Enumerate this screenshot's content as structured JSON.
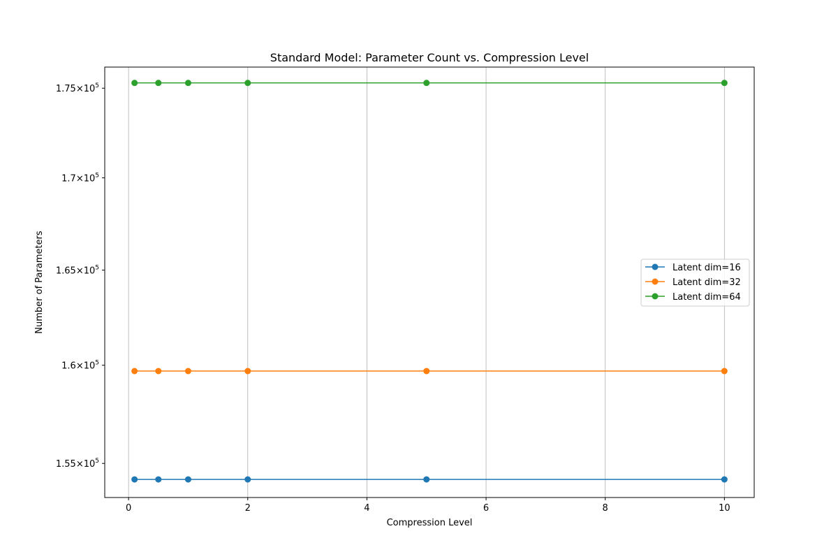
{
  "chart_data": {
    "type": "line",
    "title": "Standard Model: Parameter Count vs. Compression Level",
    "xlabel": "Compression Level",
    "ylabel": "Number of Parameters",
    "xlim": [
      -0.4,
      10.5
    ],
    "ylim": [
      153300,
      176200
    ],
    "yscale": "log",
    "grid": "x-major",
    "legend_position": "center-right",
    "x_ticks": [
      {
        "value": 0,
        "label": "0"
      },
      {
        "value": 2,
        "label": "2"
      },
      {
        "value": 4,
        "label": "4"
      },
      {
        "value": 6,
        "label": "6"
      },
      {
        "value": 8,
        "label": "8"
      },
      {
        "value": 10,
        "label": "10"
      }
    ],
    "y_ticks": [
      {
        "value": 155000,
        "mantissa": "1.55",
        "times": "×",
        "base": "10",
        "exponent": "5"
      },
      {
        "value": 160000,
        "mantissa": "1.6",
        "times": "×",
        "base": "10",
        "exponent": "5"
      },
      {
        "value": 165000,
        "mantissa": "1.65",
        "times": "×",
        "base": "10",
        "exponent": "5"
      },
      {
        "value": 170000,
        "mantissa": "1.7",
        "times": "×",
        "base": "10",
        "exponent": "5"
      },
      {
        "value": 175000,
        "mantissa": "1.75",
        "times": "×",
        "base": "10",
        "exponent": "5"
      }
    ],
    "series": [
      {
        "name": "Latent dim=16",
        "color": "#1f77b4",
        "x": [
          0.1,
          0.5,
          1,
          2,
          5,
          10
        ],
        "y": [
          154200,
          154200,
          154200,
          154200,
          154200,
          154200
        ]
      },
      {
        "name": "Latent dim=32",
        "color": "#ff7f0e",
        "x": [
          0.1,
          0.5,
          1,
          2,
          5,
          10
        ],
        "y": [
          159700,
          159700,
          159700,
          159700,
          159700,
          159700
        ]
      },
      {
        "name": "Latent dim=64",
        "color": "#2ca02c",
        "x": [
          0.1,
          0.5,
          1,
          2,
          5,
          10
        ],
        "y": [
          175300,
          175300,
          175300,
          175300,
          175300,
          175300
        ]
      }
    ]
  }
}
